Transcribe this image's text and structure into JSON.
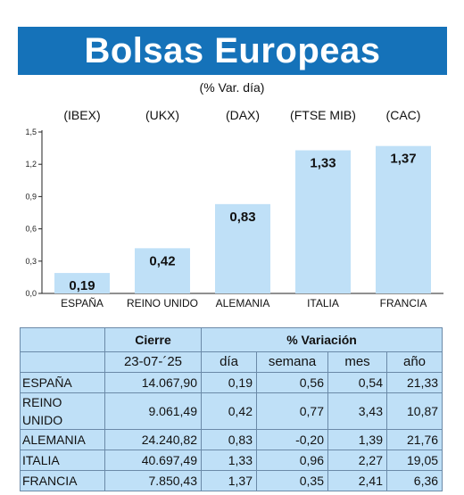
{
  "header": {
    "title": "Bolsas Europeas",
    "subtitle": "(% Var. día)"
  },
  "colors": {
    "header_bg": "#1572b9",
    "bar_fill": "#bfe0f7",
    "table_bg": "#bfe0f7",
    "border": "#6b8aa8"
  },
  "chart_data": {
    "type": "bar",
    "index_labels": [
      "(IBEX)",
      "(UKX)",
      "(DAX)",
      "(FTSE MIB)",
      "(CAC)"
    ],
    "categories": [
      "ESPAÑA",
      "REINO UNIDO",
      "ALEMANIA",
      "ITALIA",
      "FRANCIA"
    ],
    "values": [
      0.19,
      0.42,
      0.83,
      1.33,
      1.37
    ],
    "value_labels": [
      "0,19",
      "0,42",
      "0,83",
      "1,33",
      "1,37"
    ],
    "yticks": [
      "0,0",
      "0,3",
      "0,6",
      "0,9",
      "1,2",
      "1,5"
    ],
    "ylim": [
      0,
      1.5
    ],
    "grid": false
  },
  "table": {
    "group_headers": {
      "cierre": "Cierre",
      "variacion": "% Variación"
    },
    "date": "23-07-´25",
    "columns": [
      "día",
      "semana",
      "mes",
      "año"
    ],
    "rows": [
      {
        "name": "ESPAÑA",
        "cierre": "14.067,90",
        "dia": "0,19",
        "semana": "0,56",
        "mes": "0,54",
        "ano": "21,33"
      },
      {
        "name": "REINO UNIDO",
        "cierre": "9.061,49",
        "dia": "0,42",
        "semana": "0,77",
        "mes": "3,43",
        "ano": "10,87"
      },
      {
        "name": "ALEMANIA",
        "cierre": "24.240,82",
        "dia": "0,83",
        "semana": "-0,20",
        "mes": "1,39",
        "ano": "21,76"
      },
      {
        "name": "ITALIA",
        "cierre": "40.697,49",
        "dia": "1,33",
        "semana": "0,96",
        "mes": "2,27",
        "ano": "19,05"
      },
      {
        "name": "FRANCIA",
        "cierre": "7.850,43",
        "dia": "1,37",
        "semana": "0,35",
        "mes": "2,41",
        "ano": "6,36"
      }
    ]
  }
}
